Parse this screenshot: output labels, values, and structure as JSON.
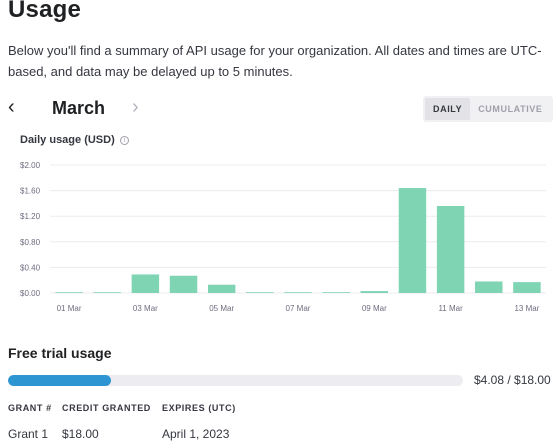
{
  "page": {
    "title": "Usage",
    "description": "Below you'll find a summary of API usage for your organization. All dates and times are UTC-based, and data may be delayed up to 5 minutes."
  },
  "month_nav": {
    "prev_icon": "chevron-left-icon",
    "month": "March",
    "next_icon": "chevron-right-icon"
  },
  "view_toggle": {
    "options": [
      "DAILY",
      "CUMULATIVE"
    ],
    "selected": "DAILY"
  },
  "chart": {
    "title": "Daily usage (USD)",
    "info_icon": "info-icon"
  },
  "chart_data": {
    "type": "bar",
    "title": "Daily usage (USD)",
    "xlabel": "",
    "ylabel": "",
    "ylim": [
      0,
      2.0
    ],
    "y_ticks": [
      "$0.00",
      "$0.40",
      "$0.80",
      "$1.20",
      "$1.60",
      "$2.00"
    ],
    "y_tick_values": [
      0,
      0.4,
      0.8,
      1.2,
      1.6,
      2.0
    ],
    "x_tick_labels": [
      "01 Mar",
      "03 Mar",
      "05 Mar",
      "07 Mar",
      "09 Mar",
      "11 Mar",
      "13 Mar"
    ],
    "categories": [
      "01 Mar",
      "02 Mar",
      "03 Mar",
      "04 Mar",
      "05 Mar",
      "06 Mar",
      "07 Mar",
      "08 Mar",
      "09 Mar",
      "10 Mar",
      "11 Mar",
      "12 Mar",
      "13 Mar"
    ],
    "values": [
      0.0,
      0.0,
      0.29,
      0.27,
      0.13,
      0.0,
      0.0,
      0.0,
      0.03,
      1.64,
      1.36,
      0.18,
      0.17
    ],
    "grid": true,
    "bar_color": "#7fd4b4"
  },
  "free_trial": {
    "title": "Free trial usage",
    "used": 4.08,
    "total": 18.0,
    "label": "$4.08 / $18.00",
    "bar_color": "#2e95d3"
  },
  "grants": {
    "headers": [
      "GRANT #",
      "CREDIT GRANTED",
      "EXPIRES (UTC)"
    ],
    "rows": [
      [
        "Grant 1",
        "$18.00",
        "April 1, 2023"
      ]
    ]
  }
}
